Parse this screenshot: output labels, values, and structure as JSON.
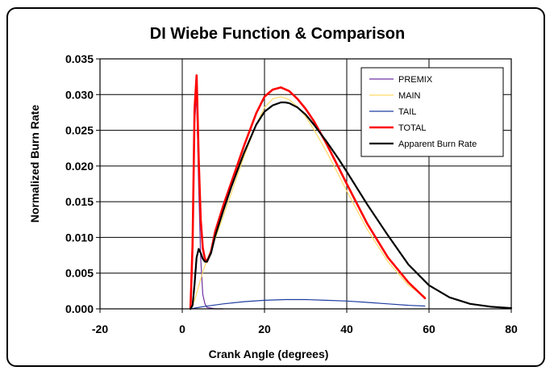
{
  "chart_data": {
    "type": "line",
    "title": "DI Wiebe Function & Comparison",
    "xlabel": "Crank Angle (degrees)",
    "ylabel": "Normalized Burn Rate",
    "xlim": [
      -20,
      80
    ],
    "ylim": [
      0,
      0.035
    ],
    "x_ticks": [
      "-20",
      "0",
      "20",
      "40",
      "60",
      "80"
    ],
    "y_ticks": [
      "0.000",
      "0.005",
      "0.010",
      "0.015",
      "0.020",
      "0.025",
      "0.030",
      "0.035"
    ],
    "grid": true,
    "legend_position": "top-right",
    "series": [
      {
        "name": "PREMIX",
        "color": "#7030A0",
        "x": [
          2.0,
          2.5,
          3.0,
          3.5,
          4.0,
          4.5,
          5.0,
          5.5,
          6.0,
          8.0,
          10.0
        ],
        "y": [
          0.0,
          0.008,
          0.026,
          0.03,
          0.017,
          0.007,
          0.002,
          0.0007,
          0.0002,
          0.0,
          0.0
        ]
      },
      {
        "name": "MAIN",
        "color": "#FFD966",
        "x": [
          2,
          3,
          4,
          5,
          6,
          8,
          10,
          12,
          15,
          18,
          20,
          22,
          24,
          26,
          28,
          30,
          32,
          35,
          38,
          40,
          45,
          50,
          55,
          59
        ],
        "y": [
          0.0,
          0.0012,
          0.0032,
          0.0052,
          0.0068,
          0.0098,
          0.013,
          0.0163,
          0.0213,
          0.0258,
          0.0282,
          0.0294,
          0.0297,
          0.0293,
          0.0283,
          0.0269,
          0.0251,
          0.0221,
          0.0188,
          0.0165,
          0.0111,
          0.0066,
          0.0033,
          0.0017
        ]
      },
      {
        "name": "TAIL",
        "color": "#1F3DA0",
        "x": [
          2,
          5,
          10,
          15,
          20,
          25,
          30,
          35,
          40,
          45,
          50,
          55,
          59
        ],
        "y": [
          0.0,
          0.0003,
          0.0007,
          0.001,
          0.0012,
          0.0013,
          0.0013,
          0.0012,
          0.0011,
          0.0009,
          0.0007,
          0.0005,
          0.0004
        ]
      },
      {
        "name": "TOTAL",
        "color": "#FF0000",
        "x": [
          2.0,
          2.5,
          3.0,
          3.5,
          4.0,
          4.5,
          5.0,
          5.5,
          6.0,
          7.0,
          8.0,
          10,
          12,
          15,
          18,
          20,
          22,
          24,
          26,
          28,
          30,
          32,
          35,
          38,
          40,
          45,
          50,
          55,
          59
        ],
        "y": [
          0.0,
          0.009,
          0.028,
          0.0327,
          0.021,
          0.0125,
          0.0085,
          0.007,
          0.0066,
          0.008,
          0.0108,
          0.0145,
          0.0178,
          0.0228,
          0.0274,
          0.0297,
          0.0307,
          0.031,
          0.0305,
          0.0294,
          0.028,
          0.0263,
          0.0232,
          0.0198,
          0.0175,
          0.0119,
          0.0072,
          0.0037,
          0.0015
        ]
      },
      {
        "name": "Apparent Burn Rate",
        "color": "#000000",
        "x": [
          2.0,
          2.5,
          3.0,
          3.5,
          4.0,
          4.5,
          5.0,
          5.5,
          6.0,
          7.0,
          8.0,
          10,
          12,
          15,
          18,
          20,
          22,
          24,
          25,
          26,
          28,
          30,
          32,
          35,
          38,
          40,
          45,
          50,
          55,
          60,
          65,
          70,
          75,
          80
        ],
        "y": [
          0.0,
          0.0005,
          0.0035,
          0.0072,
          0.0084,
          0.0078,
          0.007,
          0.0066,
          0.0066,
          0.0078,
          0.0102,
          0.0138,
          0.0172,
          0.0218,
          0.0258,
          0.0276,
          0.0285,
          0.0289,
          0.0289,
          0.0288,
          0.0282,
          0.0272,
          0.0258,
          0.0235,
          0.021,
          0.0192,
          0.0146,
          0.0103,
          0.0062,
          0.0033,
          0.0016,
          0.0007,
          0.0003,
          0.0001
        ]
      }
    ]
  }
}
